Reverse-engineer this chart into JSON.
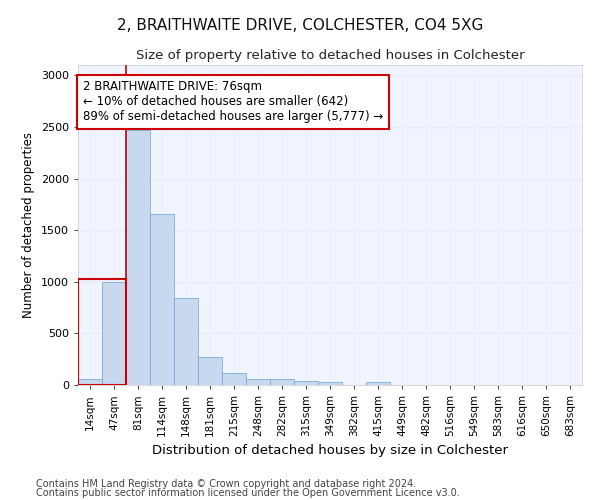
{
  "title": "2, BRAITHWAITE DRIVE, COLCHESTER, CO4 5XG",
  "subtitle": "Size of property relative to detached houses in Colchester",
  "xlabel": "Distribution of detached houses by size in Colchester",
  "ylabel": "Number of detached properties",
  "bin_labels": [
    "14sqm",
    "47sqm",
    "81sqm",
    "114sqm",
    "148sqm",
    "181sqm",
    "215sqm",
    "248sqm",
    "282sqm",
    "315sqm",
    "349sqm",
    "382sqm",
    "415sqm",
    "449sqm",
    "482sqm",
    "516sqm",
    "549sqm",
    "583sqm",
    "616sqm",
    "650sqm",
    "683sqm"
  ],
  "bar_values": [
    60,
    1000,
    2470,
    1660,
    840,
    270,
    120,
    55,
    55,
    35,
    25,
    0,
    30,
    0,
    0,
    0,
    0,
    0,
    0,
    0,
    0
  ],
  "bar_color": "#c8d8ef",
  "bar_edge_color": "#7aadd4",
  "highlight_bar_indices": [
    0,
    1
  ],
  "highlight_color": "#cc0000",
  "annotation_text": "2 BRAITHWAITE DRIVE: 76sqm\n← 10% of detached houses are smaller (642)\n89% of semi-detached houses are larger (5,777) →",
  "annotation_box_facecolor": "#ffffff",
  "annotation_box_edgecolor": "#cc0000",
  "vline_x": 1.5,
  "ylim": [
    0,
    3100
  ],
  "yticks": [
    0,
    500,
    1000,
    1500,
    2000,
    2500,
    3000
  ],
  "footer_line1": "Contains HM Land Registry data © Crown copyright and database right 2024.",
  "footer_line2": "Contains public sector information licensed under the Open Government Licence v3.0.",
  "background_color": "#ffffff",
  "plot_bg_color": "#f0f4ff",
  "grid_color": "#e8eef8",
  "title_fontsize": 11,
  "subtitle_fontsize": 9.5,
  "xlabel_fontsize": 9.5,
  "ylabel_fontsize": 8.5,
  "tick_fontsize": 7.5,
  "annotation_fontsize": 8.5,
  "footer_fontsize": 7.0
}
